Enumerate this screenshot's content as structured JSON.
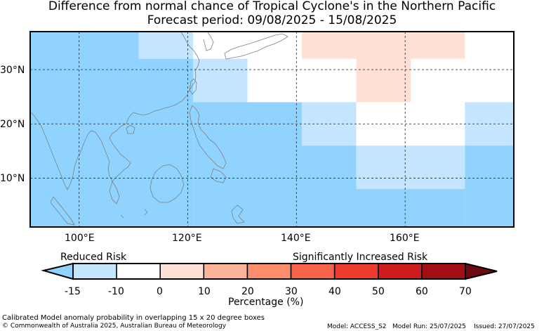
{
  "title": "Difference from normal chance of Tropical Cyclone's in the Northern Pacific",
  "subtitle": "Forecast period: 09/08/2025 - 15/08/2025",
  "map": {
    "lon_range": [
      91,
      180
    ],
    "lat_range": [
      1,
      37
    ],
    "lat_ticks": [
      {
        "value": 30,
        "label": "30°N"
      },
      {
        "value": 20,
        "label": "20°N"
      },
      {
        "value": 10,
        "label": "10°N"
      }
    ],
    "lon_ticks": [
      {
        "value": 100,
        "label": "100°E"
      },
      {
        "value": 120,
        "label": "120°E"
      },
      {
        "value": 140,
        "label": "140°E"
      },
      {
        "value": 160,
        "label": "160°E"
      }
    ],
    "grid_lines": true,
    "cells": [
      {
        "lon": [
          91,
          111
        ],
        "lat": [
          1,
          37
        ],
        "category": -15
      },
      {
        "lon": [
          111,
          121
        ],
        "lat": [
          32,
          37
        ],
        "category": -10
      },
      {
        "lon": [
          121,
          131
        ],
        "lat": [
          24,
          32
        ],
        "category": -10
      },
      {
        "lon": [
          121,
          141
        ],
        "lat": [
          1,
          24
        ],
        "category": -15
      },
      {
        "lon": [
          111,
          121
        ],
        "lat": [
          1,
          32
        ],
        "category": -15
      },
      {
        "lon": [
          121,
          141
        ],
        "lat": [
          32,
          37
        ],
        "category": 0
      },
      {
        "lon": [
          131,
          141
        ],
        "lat": [
          24,
          32
        ],
        "category": 0
      },
      {
        "lon": [
          141,
          171
        ],
        "lat": [
          32,
          37
        ],
        "category": 0
      },
      {
        "lon": [
          141,
          151
        ],
        "lat": [
          24,
          32
        ],
        "category": 0
      },
      {
        "lon": [
          151,
          161
        ],
        "lat": [
          24,
          32
        ],
        "category": 0
      },
      {
        "lon": [
          151,
          161
        ],
        "lat": [
          24,
          37
        ],
        "category": 0
      },
      {
        "lon": [
          141,
          141
        ],
        "lat": [
          1,
          1
        ],
        "category": 0
      },
      {
        "lon": [
          161,
          171
        ],
        "lat": [
          24,
          32
        ],
        "category": 0
      },
      {
        "lon": [
          171,
          180
        ],
        "lat": [
          24,
          37
        ],
        "category": 0
      },
      {
        "lon": [
          141,
          151
        ],
        "lat": [
          16,
          24
        ],
        "category": -10
      },
      {
        "lon": [
          151,
          171
        ],
        "lat": [
          16,
          24
        ],
        "category": 0
      },
      {
        "lon": [
          171,
          180
        ],
        "lat": [
          16,
          24
        ],
        "category": -10
      },
      {
        "lon": [
          141,
          151
        ],
        "lat": [
          1,
          16
        ],
        "category": -15
      },
      {
        "lon": [
          151,
          171
        ],
        "lat": [
          8,
          16
        ],
        "category": -10
      },
      {
        "lon": [
          151,
          171
        ],
        "lat": [
          1,
          8
        ],
        "category": -15
      },
      {
        "lon": [
          171,
          180
        ],
        "lat": [
          1,
          16
        ],
        "category": -15
      },
      {
        "lon": [
          141,
          171
        ],
        "lat": [
          32,
          37
        ],
        "category": 0
      },
      {
        "lon": [
          141,
          171
        ],
        "lat": [
          32,
          37
        ],
        "category": 0
      },
      {
        "lon": [
          141,
          171
        ],
        "lat": [
          32,
          37
        ],
        "category": 0
      }
    ],
    "positive_cells": [
      {
        "lon": [
          141,
          171
        ],
        "lat": [
          32,
          37
        ],
        "category": 0.5
      },
      {
        "lon": [
          151,
          161
        ],
        "lat": [
          24,
          32
        ],
        "category": 0.5
      }
    ]
  },
  "legend": {
    "reduced_label": "Reduced Risk",
    "increased_label": "Significantly Increased Risk",
    "axis_label": "Percentage (%)",
    "boundaries": [
      "-15",
      "-10",
      "0",
      "10",
      "20",
      "30",
      "40",
      "50",
      "60",
      "70"
    ],
    "colors": [
      "#8fd3fe",
      "#c3e6fe",
      "#ffffff",
      "#fee0d5",
      "#fcb59b",
      "#fc8c6b",
      "#f7644a",
      "#ee3b2c",
      "#cd1b1e",
      "#a30f15",
      "#6b0a10"
    ]
  },
  "colors": {
    "cat_-15": "#8fd3fe",
    "cat_-10": "#c3e6fe",
    "cat_0": "#ffffff",
    "cat_0.5": "#fee0d5"
  },
  "footer": {
    "description": "Calibrated Model anomaly probability in overlapping 15 x 20 degree boxes",
    "copyright": "© Commonwealth of Australia 2025, Australian Bureau of Meteorology",
    "model": "Model: ACCESS_S2",
    "model_run": "Model Run: 25/07/2025",
    "issued": "Issued: 27/07/2025"
  }
}
